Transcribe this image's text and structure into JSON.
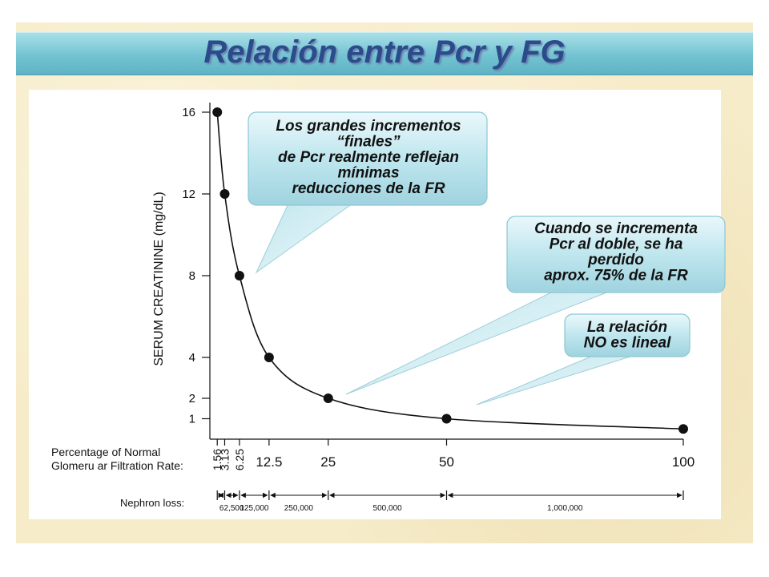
{
  "slide": {
    "title": "Relación entre Pcr y FG"
  },
  "chart_data": {
    "type": "line",
    "title": "",
    "ylabel": "SERUM CREATININE (mg/dL)",
    "xlabel": "Percentage of Normal Glomeru ar Filtration Rate:",
    "xlabel_lines": [
      "Percentage of Normal",
      "Glomeru ar Filtration Rate:"
    ],
    "ylim": [
      0,
      16
    ],
    "xlim": [
      0,
      100
    ],
    "y_ticks": [
      1,
      2,
      4,
      8,
      12,
      16
    ],
    "x_ticks": [
      {
        "value": 1.56,
        "label": "1.56",
        "rotated": true
      },
      {
        "value": 3.13,
        "label": "3.13",
        "rotated": true
      },
      {
        "value": 6.25,
        "label": "6.25",
        "rotated": true
      },
      {
        "value": 12.5,
        "label": "12.5",
        "rotated": false
      },
      {
        "value": 25,
        "label": "25",
        "rotated": false
      },
      {
        "value": 50,
        "label": "50",
        "rotated": false
      },
      {
        "value": 100,
        "label": "100",
        "rotated": false
      }
    ],
    "x": [
      1.56,
      3.13,
      6.25,
      12.5,
      25,
      50,
      100
    ],
    "values": [
      16,
      12,
      8,
      4,
      2,
      1,
      0.5
    ],
    "grid": false,
    "nephron_loss": {
      "label": "Nephron loss:",
      "segments": [
        {
          "from": 1.56,
          "to": 3.13,
          "label": ""
        },
        {
          "from": 3.13,
          "to": 6.25,
          "label": ""
        },
        {
          "from": 6.25,
          "to": 12.5,
          "label": "125,000"
        },
        {
          "from": 12.5,
          "to": 25,
          "label": "250,000"
        },
        {
          "from": 25,
          "to": 50,
          "label": "500,000"
        },
        {
          "from": 50,
          "to": 100,
          "label": "1,000,000"
        }
      ],
      "start_label": "62,500"
    }
  },
  "callouts": [
    {
      "lines": [
        "Los grandes incrementos",
        "“finales”",
        "de Pcr realmente reflejan",
        "mínimas",
        "reducciones de la FR"
      ]
    },
    {
      "lines": [
        "Cuando se incrementa",
        "Pcr al doble, se ha",
        "perdido",
        "aprox. 75% de la FR"
      ]
    },
    {
      "lines": [
        "La relación",
        "NO es lineal"
      ]
    }
  ],
  "colors": {
    "title_text": "#2b4c8a",
    "title_bar": "#73c3d2",
    "callout_fill": "#bfe6ee",
    "slide_background": "#f6ecc9"
  }
}
